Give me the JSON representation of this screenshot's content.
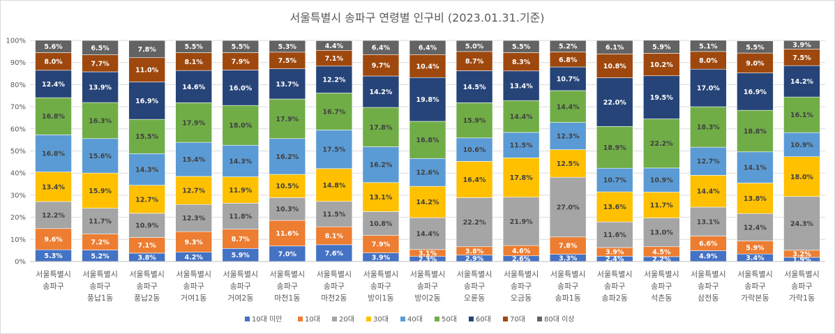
{
  "chart_data": {
    "type": "bar",
    "stacked": "percent",
    "title": "서울특별시 송파구 연령별 인구비 (2023.01.31.기준)",
    "yticks": [
      "0%",
      "10%",
      "20%",
      "30%",
      "40%",
      "50%",
      "60%",
      "70%",
      "80%",
      "90%",
      "100%"
    ],
    "ylim": [
      0,
      100
    ],
    "categories": [
      [
        "서울특별시",
        "송파구"
      ],
      [
        "서울특별시",
        "송파구",
        "풍납1동"
      ],
      [
        "서울특별시",
        "송파구",
        "풍납2동"
      ],
      [
        "서울특별시",
        "송파구",
        "거여1동"
      ],
      [
        "서울특별시",
        "송파구",
        "거여2동"
      ],
      [
        "서울특별시",
        "송파구",
        "마천1동"
      ],
      [
        "서울특별시",
        "송파구",
        "마천2동"
      ],
      [
        "서울특별시",
        "송파구",
        "방이1동"
      ],
      [
        "서울특별시",
        "송파구",
        "방이2동"
      ],
      [
        "서울특별시",
        "송파구",
        "오륜동"
      ],
      [
        "서울특별시",
        "송파구",
        "오금동"
      ],
      [
        "서울특별시",
        "송파구",
        "송파1동"
      ],
      [
        "서울특별시",
        "송파구",
        "송파2동"
      ],
      [
        "서울특별시",
        "송파구",
        "석촌동"
      ],
      [
        "서울특별시",
        "송파구",
        "삼전동"
      ],
      [
        "서울특별시",
        "송파구",
        "가락본동"
      ],
      [
        "서울특별시",
        "송파구",
        "가락1동"
      ]
    ],
    "series": [
      {
        "name": "10대 미만",
        "color": "#4472c4",
        "label_color": "#ffffff",
        "values": [
          5.3,
          5.2,
          3.8,
          4.2,
          5.9,
          7.0,
          7.6,
          3.9,
          2.3,
          2.9,
          2.6,
          3.3,
          2.4,
          2.2,
          4.9,
          3.4,
          1.9
        ]
      },
      {
        "name": "10대",
        "color": "#ed7d31",
        "label_color": "#ffffff",
        "values": [
          9.6,
          7.2,
          7.1,
          9.3,
          8.7,
          11.6,
          8.1,
          7.9,
          3.1,
          3.8,
          4.6,
          7.8,
          3.9,
          4.5,
          6.6,
          5.9,
          3.2
        ]
      },
      {
        "name": "20대",
        "color": "#a5a5a5",
        "label_color": "#404040",
        "values": [
          12.2,
          11.7,
          10.9,
          12.3,
          11.8,
          10.3,
          11.5,
          10.8,
          14.4,
          22.2,
          21.9,
          27.0,
          11.6,
          13.0,
          13.1,
          12.4,
          24.3
        ]
      },
      {
        "name": "30대",
        "color": "#ffc000",
        "label_color": "#404040",
        "values": [
          13.4,
          15.9,
          12.7,
          12.7,
          11.9,
          10.5,
          14.8,
          13.1,
          14.2,
          16.4,
          17.8,
          12.5,
          13.6,
          11.7,
          14.4,
          13.8,
          18.0
        ]
      },
      {
        "name": "40대",
        "color": "#5b9bd5",
        "label_color": "#404040",
        "values": [
          16.8,
          15.6,
          14.3,
          15.4,
          14.3,
          16.2,
          17.5,
          16.2,
          12.6,
          10.6,
          11.5,
          12.3,
          10.7,
          10.9,
          12.7,
          14.1,
          10.9
        ]
      },
      {
        "name": "50대",
        "color": "#70ad47",
        "label_color": "#404040",
        "values": [
          16.8,
          16.3,
          15.5,
          17.9,
          18.0,
          17.9,
          16.7,
          17.8,
          16.8,
          15.9,
          14.4,
          14.4,
          18.9,
          22.2,
          18.3,
          18.8,
          16.1
        ]
      },
      {
        "name": "60대",
        "color": "#264478",
        "label_color": "#ffffff",
        "values": [
          12.4,
          13.9,
          16.9,
          14.6,
          16.0,
          13.7,
          12.2,
          14.2,
          19.8,
          14.5,
          13.4,
          10.7,
          22.0,
          19.5,
          17.0,
          16.9,
          14.2
        ]
      },
      {
        "name": "70대",
        "color": "#9e480e",
        "label_color": "#ffffff",
        "values": [
          8.0,
          7.7,
          11.0,
          8.1,
          7.9,
          7.5,
          7.1,
          9.7,
          10.4,
          8.7,
          8.3,
          6.8,
          10.8,
          10.2,
          8.0,
          9.0,
          7.5
        ]
      },
      {
        "name": "80대 이상",
        "color": "#636363",
        "label_color": "#ffffff",
        "values": [
          5.6,
          6.5,
          7.8,
          5.5,
          5.5,
          5.3,
          4.4,
          6.4,
          6.4,
          5.0,
          5.5,
          5.2,
          6.1,
          5.9,
          5.1,
          5.5,
          3.9
        ]
      }
    ],
    "legend": "bottom"
  }
}
